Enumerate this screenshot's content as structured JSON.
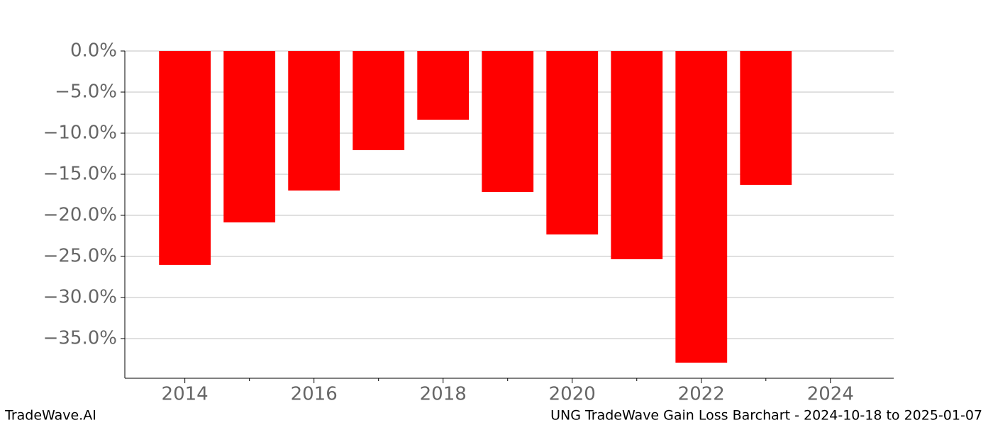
{
  "chart_data": {
    "type": "bar",
    "title": "UNG TradeWave Gain Loss Barchart - 2024-10-18 to 2025-01-07",
    "watermark": "TradeWave.AI",
    "x": [
      2014,
      2015,
      2016,
      2017,
      2018,
      2019,
      2020,
      2021,
      2022,
      2023
    ],
    "values": [
      -26.03,
      -20.86,
      -16.98,
      -12.07,
      -8.36,
      -17.16,
      -22.33,
      -25.34,
      -37.93,
      -16.29
    ],
    "color": "#ff0000",
    "bar_width": 0.8,
    "xlim": [
      2013.07,
      2024.98
    ],
    "xticks": [
      2014,
      2016,
      2018,
      2020,
      2022,
      2024
    ],
    "xminorticks": [
      2015,
      2017,
      2019,
      2021,
      2023
    ],
    "ylim": [
      -39.83,
      0
    ],
    "yticks": [
      {
        "value": 0,
        "label": "0.0%"
      },
      {
        "value": -5,
        "label": "−5.0%"
      },
      {
        "value": -10,
        "label": "−10.0%"
      },
      {
        "value": -15,
        "label": "−15.0%"
      },
      {
        "value": -20,
        "label": "−20.0%"
      },
      {
        "value": -25,
        "label": "−25.0%"
      },
      {
        "value": -30,
        "label": "−30.0%"
      },
      {
        "value": -35,
        "label": "−35.0%"
      }
    ],
    "grid": true
  }
}
